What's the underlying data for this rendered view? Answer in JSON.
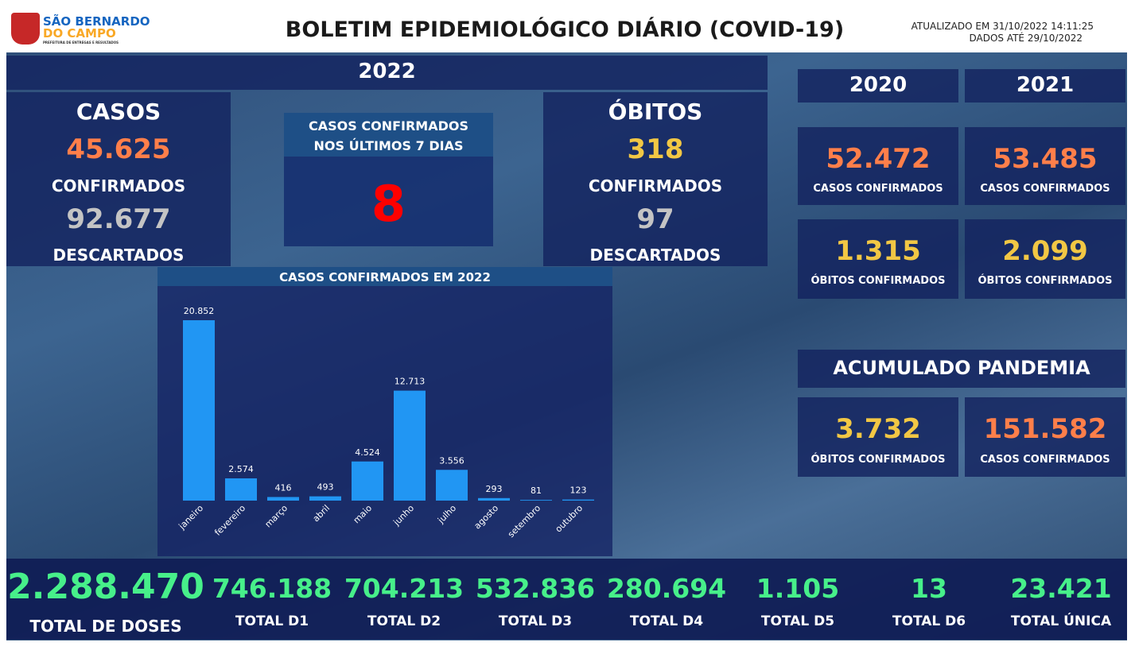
{
  "header": {
    "logo_line1": "SÃO BERNARDO",
    "logo_line2": "DO CAMPO",
    "logo_sub": "PREFEITURA DE ENTREGAS E RESULTADOS",
    "title": "BOLETIM EPIDEMIOLÓGICO DIÁRIO (COVID-19)",
    "updated": "ATUALIZADO EM 31/10/2022 14:11:25",
    "data_until": "DADOS ATÉ 29/10/2022"
  },
  "year_2022": {
    "title": "2022",
    "casos": {
      "title": "CASOS",
      "confirmed": "45.625",
      "confirmed_label": "CONFIRMADOS",
      "discarded": "92.677",
      "discarded_label": "DESCARTADOS"
    },
    "last7": {
      "title": "CASOS CONFIRMADOS NOS ÚLTIMOS 7 DIAS",
      "value": "8"
    },
    "obitos": {
      "title": "ÓBITOS",
      "confirmed": "318",
      "confirmed_label": "CONFIRMADOS",
      "discarded": "97",
      "discarded_label": "DESCARTADOS"
    }
  },
  "year_2020": {
    "title": "2020",
    "cases": "52.472",
    "cases_label": "CASOS CONFIRMADOS",
    "deaths": "1.315",
    "deaths_label": "ÓBITOS CONFIRMADOS"
  },
  "year_2021": {
    "title": "2021",
    "cases": "53.485",
    "cases_label": "CASOS CONFIRMADOS",
    "deaths": "2.099",
    "deaths_label": "ÓBITOS CONFIRMADOS"
  },
  "pandemic": {
    "title": "ACUMULADO PANDEMIA",
    "deaths": "3.732",
    "deaths_label": "ÓBITOS CONFIRMADOS",
    "cases": "151.582",
    "cases_label": "CASOS CONFIRMADOS"
  },
  "vaccination": [
    {
      "value": "2.288.470",
      "label": "TOTAL DE DOSES"
    },
    {
      "value": "746.188",
      "label": "TOTAL D1"
    },
    {
      "value": "704.213",
      "label": "TOTAL D2"
    },
    {
      "value": "532.836",
      "label": "TOTAL D3"
    },
    {
      "value": "280.694",
      "label": "TOTAL D4"
    },
    {
      "value": "1.105",
      "label": "TOTAL D5"
    },
    {
      "value": "13",
      "label": "TOTAL D6"
    },
    {
      "value": "23.421",
      "label": "TOTAL ÚNICA"
    }
  ],
  "chart_data": {
    "type": "bar",
    "title": "CASOS CONFIRMADOS EM 2022",
    "categories": [
      "janeiro",
      "fevereiro",
      "março",
      "abril",
      "maio",
      "junho",
      "julho",
      "agosto",
      "setembro",
      "outubro"
    ],
    "values": [
      20852,
      2574,
      416,
      493,
      4524,
      12713,
      3556,
      293,
      81,
      123
    ],
    "value_labels": [
      "20.852",
      "2.574",
      "416",
      "493",
      "4.524",
      "12.713",
      "3.556",
      "293",
      "81",
      "123"
    ],
    "color": "#2196f3"
  }
}
